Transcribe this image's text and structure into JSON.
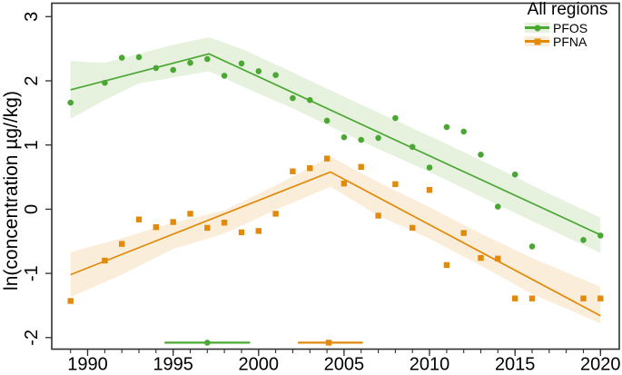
{
  "chart_meta": {
    "y_axis_title": "ln(concentration µg//kg)",
    "x_axis_title": ""
  },
  "legend": {
    "title": "All regions",
    "items": [
      {
        "label": "PFOS",
        "marker": "circle",
        "color": "#4ba733",
        "band_color": "#e6f2de"
      },
      {
        "label": "PFNA",
        "marker": "square",
        "color": "#e18a0b",
        "band_color": "#faeeda"
      }
    ]
  },
  "chart_data": {
    "type": "scatter",
    "subtype": "scatter with segmented trend lines and confidence ribbons",
    "title": "",
    "xlabel": "",
    "ylabel": "ln(concentration µg//kg)",
    "xlim": [
      1987.9,
      2021.1
    ],
    "ylim": [
      -2.18,
      3.21
    ],
    "x_ticks": [
      1990,
      1995,
      2000,
      2005,
      2010,
      2015,
      2020
    ],
    "x_minor_range": [
      1989,
      2020
    ],
    "x_minor_step": 1,
    "y_ticks": [
      -2,
      -1,
      0,
      1,
      2,
      3
    ],
    "grid": false,
    "legend_position": "top-right",
    "frame_color": "#303030",
    "series": [
      {
        "name": "PFOS",
        "marker": "circle",
        "color": "#4ba733",
        "band_color": "#e6f2de",
        "points": [
          [
            1989,
            1.66
          ],
          [
            1991,
            1.97
          ],
          [
            1992,
            2.36
          ],
          [
            1993,
            2.37
          ],
          [
            1994,
            2.2
          ],
          [
            1995,
            2.17
          ],
          [
            1996,
            2.28
          ],
          [
            1997,
            2.34
          ],
          [
            1998,
            2.08
          ],
          [
            1999,
            2.27
          ],
          [
            2000,
            2.15
          ],
          [
            2001,
            2.09
          ],
          [
            2002,
            1.73
          ],
          [
            2003,
            1.7
          ],
          [
            2004,
            1.38
          ],
          [
            2005,
            1.12
          ],
          [
            2006,
            1.08
          ],
          [
            2007,
            1.11
          ],
          [
            2008,
            1.42
          ],
          [
            2009,
            0.97
          ],
          [
            2010,
            0.65
          ],
          [
            2011,
            1.28
          ],
          [
            2012,
            1.21
          ],
          [
            2013,
            0.85
          ],
          [
            2014,
            0.04
          ],
          [
            2015,
            0.54
          ],
          [
            2016,
            -0.58
          ],
          [
            2019,
            -0.48
          ],
          [
            2020,
            -0.41
          ]
        ],
        "trend": [
          [
            1989,
            1.86
          ],
          [
            1997.1,
            2.42
          ],
          [
            2020,
            -0.4
          ]
        ],
        "band": [
          [
            1989,
            2.31,
            1.41
          ],
          [
            1991,
            2.28,
            1.7
          ],
          [
            1993,
            2.42,
            1.96
          ],
          [
            1995,
            2.56,
            2.05
          ],
          [
            1997.1,
            2.68,
            2.15
          ],
          [
            1999,
            2.5,
            1.92
          ],
          [
            2002,
            2.13,
            1.57
          ],
          [
            2006,
            1.63,
            1.06
          ],
          [
            2010,
            1.14,
            0.58
          ],
          [
            2014,
            0.64,
            0.07
          ],
          [
            2017,
            0.24,
            -0.31
          ],
          [
            2020,
            -0.13,
            -0.68
          ]
        ],
        "breakpoint": {
          "estimate": 1997.0,
          "ci_low": 1994.5,
          "ci_high": 1999.5,
          "y": -2.08
        }
      },
      {
        "name": "PFNA",
        "marker": "square",
        "color": "#e18a0b",
        "band_color": "#faeeda",
        "points": [
          [
            1989,
            -1.43
          ],
          [
            1991,
            -0.8
          ],
          [
            1992,
            -0.54
          ],
          [
            1993,
            -0.16
          ],
          [
            1994,
            -0.28
          ],
          [
            1995,
            -0.2
          ],
          [
            1996,
            -0.07
          ],
          [
            1997,
            -0.29
          ],
          [
            1998,
            -0.21
          ],
          [
            1999,
            -0.36
          ],
          [
            2000,
            -0.34
          ],
          [
            2001,
            -0.07
          ],
          [
            2002,
            0.59
          ],
          [
            2003,
            0.64
          ],
          [
            2004,
            0.79
          ],
          [
            2005,
            0.4
          ],
          [
            2006,
            0.66
          ],
          [
            2007,
            -0.1
          ],
          [
            2008,
            0.39
          ],
          [
            2009,
            -0.29
          ],
          [
            2010,
            0.3
          ],
          [
            2011,
            -0.87
          ],
          [
            2012,
            -0.37
          ],
          [
            2013,
            -0.76
          ],
          [
            2014,
            -0.77
          ],
          [
            2015,
            -1.39
          ],
          [
            2016,
            -1.39
          ],
          [
            2019,
            -1.39
          ],
          [
            2020,
            -1.39
          ]
        ],
        "trend": [
          [
            1989,
            -1.02
          ],
          [
            2004.2,
            0.58
          ],
          [
            2020,
            -1.66
          ]
        ],
        "band": [
          [
            1989,
            -0.67,
            -1.37
          ],
          [
            1992,
            -0.45,
            -1.02
          ],
          [
            1995,
            -0.21,
            -0.62
          ],
          [
            1998,
            -0.02,
            -0.38
          ],
          [
            2001,
            0.37,
            -0.01
          ],
          [
            2004.2,
            0.82,
            0.35
          ],
          [
            2007,
            0.42,
            -0.1
          ],
          [
            2010,
            0.03,
            -0.46
          ],
          [
            2013,
            -0.38,
            -0.88
          ],
          [
            2016,
            -0.76,
            -1.32
          ],
          [
            2020,
            -1.21,
            -1.78
          ]
        ],
        "breakpoint": {
          "estimate": 2004.1,
          "ci_low": 2002.3,
          "ci_high": 2006.1,
          "y": -2.08
        }
      }
    ]
  }
}
